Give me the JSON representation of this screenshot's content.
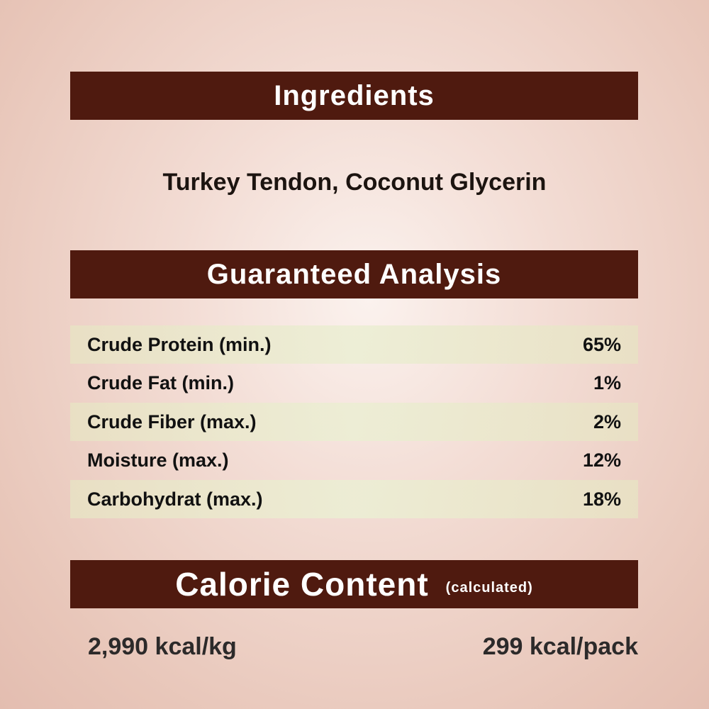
{
  "ingredients": {
    "heading": "Ingredients",
    "text": "Turkey Tendon, Coconut Glycerin"
  },
  "analysis": {
    "heading": "Guaranteed Analysis",
    "rows": [
      {
        "label": "Crude Protein (min.)",
        "value": "65%"
      },
      {
        "label": "Crude Fat (min.)",
        "value": "1%"
      },
      {
        "label": "Crude Fiber (max.)",
        "value": "2%"
      },
      {
        "label": "Moisture (max.)",
        "value": "12%"
      },
      {
        "label": "Carbohydrat (max.)",
        "value": "18%"
      }
    ]
  },
  "calorie": {
    "heading": "Calorie Content",
    "note": "(calculated)",
    "per_kg": "2,990 kcal/kg",
    "per_pack": "299 kcal/pack"
  },
  "colors": {
    "banner": "#4f1a0f",
    "background": "#ecd0c5"
  }
}
